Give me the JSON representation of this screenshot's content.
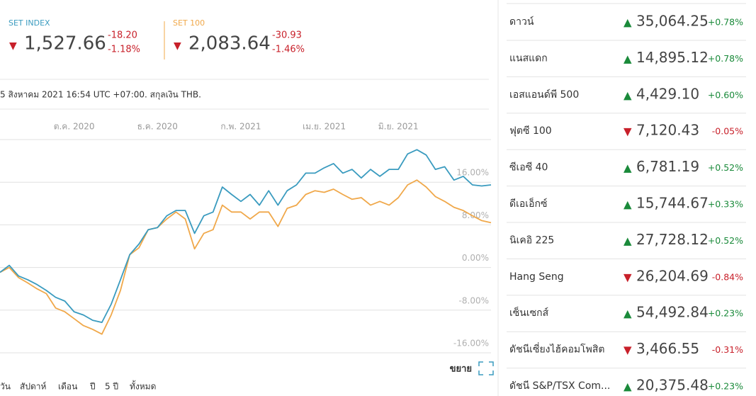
{
  "quotes": [
    {
      "name": "SET INDEX",
      "price": "1,527.66",
      "change": "-18.20",
      "percent": "-1.18%",
      "color": "#3a9bbf"
    },
    {
      "name": "SET 100",
      "price": "2,083.64",
      "change": "-30.93",
      "percent": "-1.46%",
      "color": "#f0a84a"
    }
  ],
  "note": "5 สิงหาคม 2021 16:54 UTC +07:00. สกุลเงิน THB.",
  "ranges": [
    "วัน",
    "สัปดาห์",
    "เดือน",
    "ปี",
    "5 ปี",
    "ทั้งหมด"
  ],
  "expand": "ขยาย",
  "indices": [
    {
      "name": "ดาวน์",
      "value": "35,064.25",
      "change": "+0.78%"
    },
    {
      "name": "แนสแดก",
      "value": "14,895.12",
      "change": "+0.78%"
    },
    {
      "name": "เอสแอนด์พี 500",
      "value": "4,429.10",
      "change": "+0.60%"
    },
    {
      "name": "ฟุตซี 100",
      "value": "7,120.43",
      "change": "-0.05%"
    },
    {
      "name": "ซีเอซี 40",
      "value": "6,781.19",
      "change": "+0.52%"
    },
    {
      "name": "ดีเอเอ็กซ์",
      "value": "15,744.67",
      "change": "+0.33%"
    },
    {
      "name": "นิเคอิ 225",
      "value": "27,728.12",
      "change": "+0.52%"
    },
    {
      "name": "Hang Seng",
      "value": "26,204.69",
      "change": "-0.84%"
    },
    {
      "name": "เซ็นเซกส์",
      "value": "54,492.84",
      "change": "+0.23%"
    },
    {
      "name": "ดัชนีเซี่ยงไฮ้คอมโพสิต",
      "value": "3,466.55",
      "change": "-0.31%"
    },
    {
      "name": "ดัชนี S&P/TSX Com...",
      "value": "20,375.48",
      "change": "+0.23%"
    }
  ],
  "chart_data": {
    "type": "line",
    "categories": [
      null,
      null,
      null,
      null,
      null,
      null,
      null,
      null,
      "ต.ค. 2020",
      null,
      null,
      null,
      null,
      null,
      null,
      null,
      null,
      "ธ.ค. 2020",
      null,
      null,
      null,
      null,
      null,
      null,
      null,
      null,
      "ก.พ. 2021",
      null,
      null,
      null,
      null,
      null,
      null,
      null,
      null,
      "เม.ย. 2021",
      null,
      null,
      null,
      null,
      null,
      null,
      null,
      "มิ.ย. 2021",
      null,
      null,
      null,
      null,
      null,
      null,
      null,
      null,
      null,
      null
    ],
    "series": [
      {
        "name": "SET INDEX",
        "color": "#3a9bbf",
        "values": [
          -0.9,
          0.4,
          -1.6,
          -2.3,
          -3.2,
          -4.3,
          -5.6,
          -6.3,
          -8.3,
          -8.9,
          -9.9,
          -10.3,
          -6.9,
          -2.3,
          2.4,
          4.4,
          7.1,
          7.5,
          9.7,
          10.7,
          10.7,
          6.4,
          9.7,
          10.4,
          15.1,
          13.7,
          12.4,
          13.7,
          11.7,
          14.4,
          11.7,
          14.4,
          15.5,
          17.7,
          17.7,
          18.7,
          19.5,
          17.7,
          18.4,
          16.8,
          18.4,
          17.1,
          18.4,
          18.4,
          21.3,
          22.1,
          21.1,
          18.4,
          18.9,
          16.4,
          17.1,
          15.5,
          15.3,
          15.5
        ]
      },
      {
        "name": "SET 100",
        "color": "#f0a84a",
        "values": [
          -0.9,
          0,
          -1.9,
          -2.9,
          -4.0,
          -4.9,
          -7.6,
          -8.3,
          -9.6,
          -10.9,
          -11.6,
          -12.5,
          -8.9,
          -4.3,
          2.4,
          3.7,
          7.1,
          7.5,
          9.1,
          10.4,
          9.1,
          3.5,
          6.4,
          7.1,
          11.7,
          10.4,
          10.4,
          9.1,
          10.4,
          10.4,
          7.7,
          11.1,
          11.7,
          13.7,
          14.4,
          14.1,
          14.7,
          13.7,
          12.8,
          13.1,
          11.7,
          12.4,
          11.7,
          13.1,
          15.5,
          16.4,
          15.1,
          13.3,
          12.4,
          11.3,
          10.7,
          9.7,
          8.8,
          8.4
        ]
      }
    ],
    "ylim": [
      -16,
      24
    ],
    "yticks": [
      {
        "value": -16,
        "label": "-16.00%"
      },
      {
        "value": -8,
        "label": "-8.00%"
      },
      {
        "value": 0,
        "label": "0.00%"
      },
      {
        "value": 8,
        "label": "8.00%"
      },
      {
        "value": 16,
        "label": "16.00%"
      }
    ],
    "grid": true
  }
}
